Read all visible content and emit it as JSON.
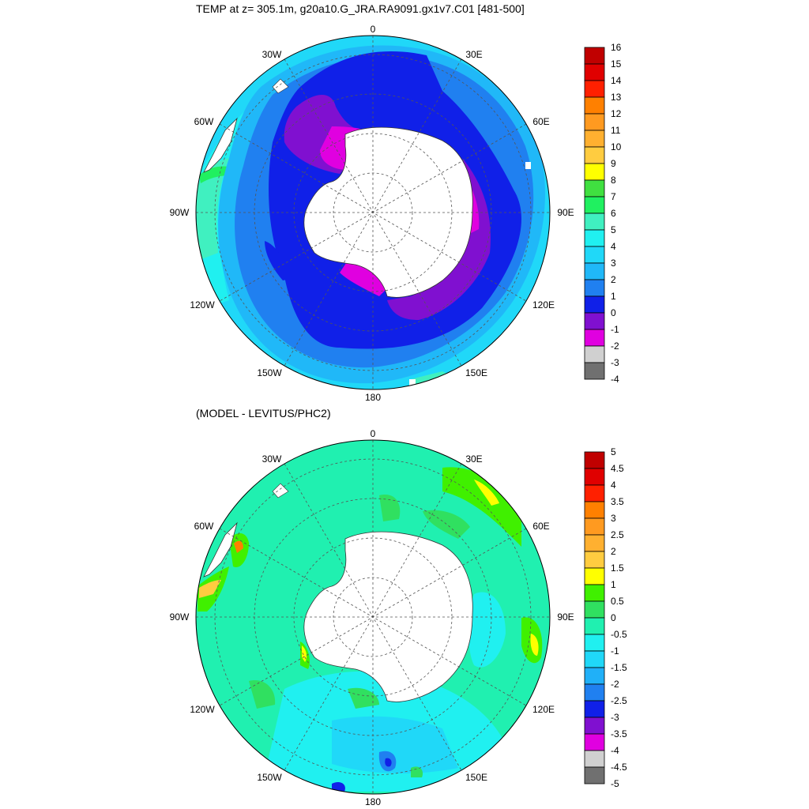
{
  "top_panel": {
    "title": "TEMP at z= 305.1m, g20a10.G_JRA.RA9091.gx1v7.C01 [481-500]",
    "colorbar_labels": [
      "16",
      "15",
      "14",
      "13",
      "12",
      "11",
      "10",
      "9",
      "8",
      "7",
      "6",
      "5",
      "4",
      "3",
      "2",
      "1",
      "0",
      "-1",
      "-2",
      "-3",
      "-4"
    ],
    "colors": [
      "#c00000",
      "#e00000",
      "#ff2000",
      "#ff8000",
      "#ff9a20",
      "#ffb030",
      "#ffcc40",
      "#ffff00",
      "#40e040",
      "#20f060",
      "#40f0c0",
      "#20f0f0",
      "#20d8f8",
      "#20b8f8",
      "#2080f0",
      "#1020e8",
      "#8010d0",
      "#e000e0",
      "#d0d0d0",
      "#707070"
    ]
  },
  "bottom_panel": {
    "title": "(MODEL - LEVITUS/PHC2)",
    "colorbar_labels": [
      "5",
      "4.5",
      "4",
      "3.5",
      "3",
      "2.5",
      "2",
      "1.5",
      "1",
      "0.5",
      "0",
      "-0.5",
      "-1",
      "-1.5",
      "-2",
      "-2.5",
      "-3",
      "-3.5",
      "-4",
      "-4.5",
      "-5"
    ],
    "colors": [
      "#c00000",
      "#e00000",
      "#ff2000",
      "#ff8000",
      "#ff9a20",
      "#ffb030",
      "#ffcc40",
      "#ffff00",
      "#40f000",
      "#30e060",
      "#20f0b0",
      "#20f0f0",
      "#20d8f8",
      "#20b0f8",
      "#2080f0",
      "#1020e8",
      "#8010d0",
      "#e000e0",
      "#d0d0d0",
      "#707070"
    ]
  },
  "map_labels": {
    "lon_0": "0",
    "lon_30e": "30E",
    "lon_60e": "60E",
    "lon_90e": "90E",
    "lon_120e": "120E",
    "lon_150e": "150E",
    "lon_180": "180",
    "lon_150w": "150W",
    "lon_120w": "120W",
    "lon_90w": "90W",
    "lon_60w": "60W",
    "lon_30w": "30W"
  },
  "map_data": {
    "projection": "south polar stereographic",
    "graticule": "dashed"
  }
}
